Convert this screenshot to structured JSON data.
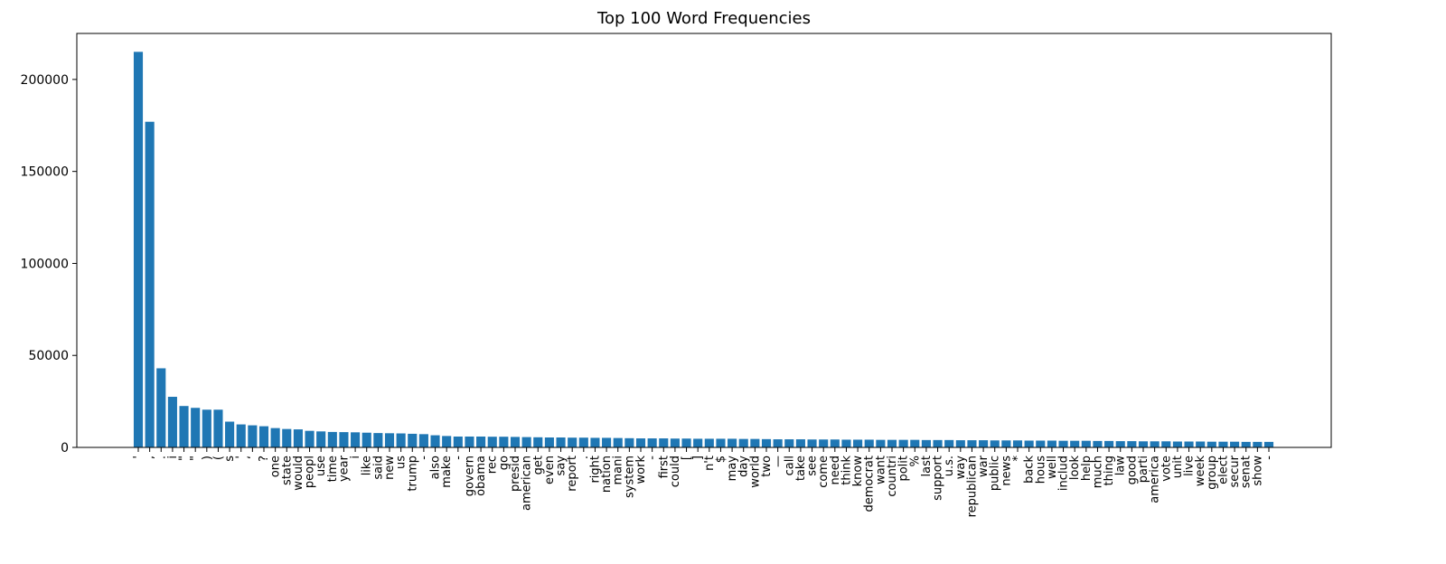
{
  "chart_data": {
    "type": "bar",
    "title": "Top 100 Word Frequencies",
    "xlabel": "",
    "ylabel": "",
    "ylim": [
      0,
      225000
    ],
    "yticks": [
      0,
      50000,
      100000,
      150000,
      200000
    ],
    "grid": false,
    "bar_color": "#1f77b4",
    "categories": [
      "'",
      ",",
      ".",
      "i",
      "\"",
      "\"",
      ")",
      "(",
      "s",
      "'",
      "‘",
      "?",
      "one",
      "state",
      "would",
      "peopl",
      "use",
      "time",
      "year",
      "i",
      "like",
      "said",
      "new",
      "us",
      "trump",
      "-",
      "also",
      "make",
      "-",
      "govern",
      "obama",
      "rec",
      "go",
      "presid",
      "american",
      "get",
      "even",
      "say",
      "report",
      ".",
      "right",
      "nation",
      "mani",
      "system",
      "work",
      "-",
      "first",
      "could",
      "[",
      "]",
      "n't",
      "$",
      "may",
      "day",
      "world",
      "two",
      "—",
      "call",
      "take",
      "see",
      "come",
      "need",
      "think",
      "know",
      "democrat",
      "want",
      "countri",
      "polit",
      "%",
      "last",
      "support",
      "u.s.",
      "way",
      "republican",
      "war",
      "public",
      "news",
      "*",
      "back",
      "hous",
      "well",
      "includ",
      "look",
      "help",
      "much",
      "thing",
      "law",
      "good",
      "parti",
      "america",
      "vote",
      "unit",
      "live",
      "week",
      "group",
      "elect",
      "secur",
      "senat",
      "show",
      "-"
    ],
    "values": [
      215000,
      177000,
      43000,
      27500,
      22500,
      21500,
      20500,
      20500,
      14000,
      12500,
      12000,
      11500,
      10500,
      10000,
      9800,
      9000,
      8700,
      8400,
      8300,
      8200,
      8000,
      7800,
      7700,
      7600,
      7400,
      7200,
      6600,
      6200,
      5900,
      5900,
      5900,
      5800,
      5800,
      5700,
      5600,
      5500,
      5400,
      5400,
      5300,
      5300,
      5200,
      5200,
      5100,
      5000,
      4900,
      4900,
      4900,
      4800,
      4800,
      4700,
      4700,
      4700,
      4700,
      4600,
      4600,
      4500,
      4400,
      4400,
      4400,
      4300,
      4300,
      4300,
      4200,
      4200,
      4200,
      4100,
      4100,
      4100,
      4100,
      4000,
      4000,
      4000,
      3900,
      3900,
      3900,
      3800,
      3800,
      3800,
      3700,
      3700,
      3700,
      3600,
      3600,
      3600,
      3500,
      3500,
      3400,
      3400,
      3300,
      3300,
      3300,
      3200,
      3200,
      3200,
      3100,
      3100,
      3100,
      3000,
      3000,
      3000
    ]
  }
}
